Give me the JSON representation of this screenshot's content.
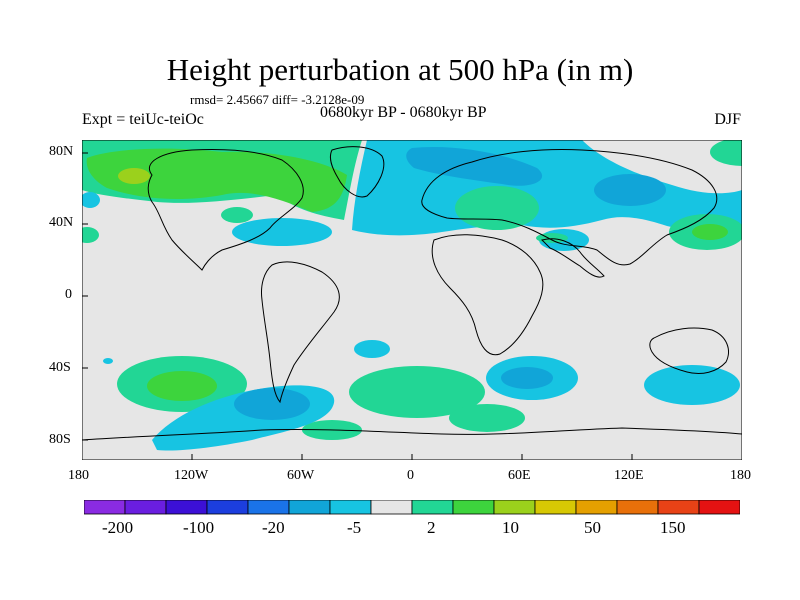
{
  "title": "Height perturbation at 500 hPa (in m)",
  "stats_line": "rmsd= 2.45667 diff= -3.2128e-09",
  "left_label": "Expt = teiUc-teiOc",
  "center_label": "0680kyr BP - 0680kyr BP",
  "right_label": "DJF",
  "map": {
    "lat_labels": [
      "80N",
      "40N",
      "0",
      "40S",
      "80S"
    ],
    "lon_labels": [
      "180",
      "120W",
      "60W",
      "0",
      "60E",
      "120E",
      "180"
    ]
  },
  "colorbar": {
    "colors": [
      "#8a2be2",
      "#6a1ee0",
      "#3c10d6",
      "#1c3ede",
      "#1a73e8",
      "#11a5d8",
      "#17c4e2",
      "#e6e6e6",
      "#22d695",
      "#3dd43d",
      "#9bd11c",
      "#d7c804",
      "#e5a000",
      "#e8700a",
      "#e84216",
      "#e41212"
    ],
    "labels": [
      "-200",
      "-100",
      "-20",
      "-5",
      "2",
      "10",
      "50",
      "150"
    ]
  },
  "colors": {
    "land_bg": "#e6e6e6",
    "neg_light": "#17c4e2",
    "neg_mid": "#11a5d8",
    "pos_light": "#22d695",
    "pos_mid": "#3dd43d",
    "pos_strong": "#9bd11c"
  }
}
